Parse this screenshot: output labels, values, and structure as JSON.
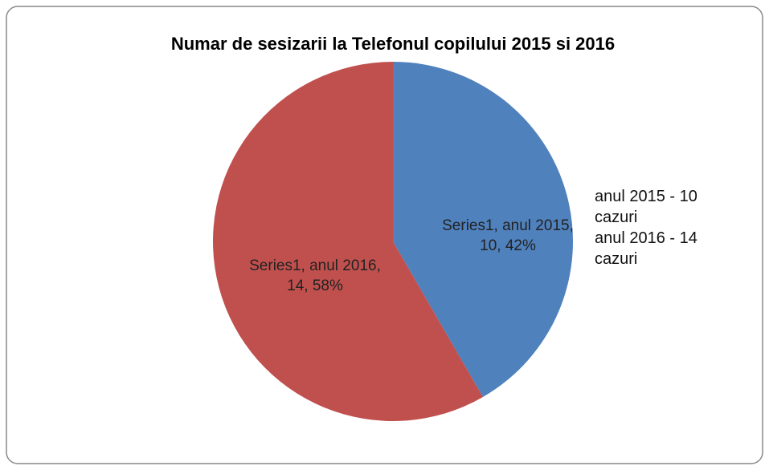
{
  "chart_data": {
    "type": "pie",
    "title": "Numar de sesizarii la Telefonul copilului 2015 si 2016",
    "categories": [
      "anul 2015 - 10 cazuri",
      "anul 2016 - 14 cazuri"
    ],
    "values": [
      10,
      14
    ],
    "value_labels": [
      "Series1, anul 2015, 10, 42%",
      "Series1, anul 2016, 14, 58%"
    ],
    "colors": [
      "#4f81bd",
      "#c0504d"
    ]
  }
}
